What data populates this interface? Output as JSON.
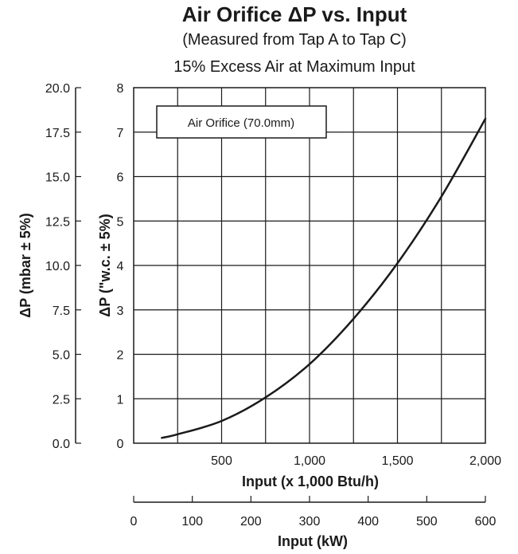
{
  "chart_data": {
    "type": "line",
    "title": "Air Orifice ΔP vs. Input",
    "subtitle_1": "(Measured from Tap A to Tap C)",
    "subtitle_2": "15% Excess Air at Maximum Input",
    "legend": {
      "label": "Air Orifice (70.0mm)",
      "placement": "top-left"
    },
    "grid": true,
    "x_axis": {
      "label": "Input (x 1,000 Btu/h)",
      "min": 0,
      "max": 2000,
      "ticks": [
        500,
        1000,
        1500,
        2000
      ],
      "tick_labels": [
        "500",
        "1,000",
        "1,500",
        "2,000"
      ],
      "grid_step": 250
    },
    "x_axis_secondary": {
      "label": "Input (kW)",
      "min": 0,
      "max": 600,
      "ticks": [
        0,
        100,
        200,
        300,
        400,
        500,
        600
      ],
      "tick_labels": [
        "0",
        "100",
        "200",
        "300",
        "400",
        "500",
        "600"
      ]
    },
    "y_axis": {
      "label": "ΔP (\"w.c. ± 5%)",
      "min": 0,
      "max": 8,
      "ticks": [
        0,
        1,
        2,
        3,
        4,
        5,
        6,
        7,
        8
      ],
      "tick_labels": [
        "0",
        "1",
        "2",
        "3",
        "4",
        "5",
        "6",
        "7",
        "8"
      ]
    },
    "y_axis_secondary": {
      "label": "ΔP (mbar ± 5%)",
      "min": 0,
      "max": 20,
      "ticks": [
        0,
        2.5,
        5,
        7.5,
        10,
        12.5,
        15,
        17.5,
        20
      ],
      "tick_labels": [
        "0.0",
        "2.5",
        "5.0",
        "7.5",
        "10.0",
        "12.5",
        "15.0",
        "17.5",
        "20.0"
      ]
    },
    "series": [
      {
        "name": "Air Orifice (70.0mm)",
        "color": "#1a1a1a",
        "x": [
          160,
          250,
          500,
          750,
          1000,
          1250,
          1500,
          1750,
          2000
        ],
        "y": [
          0.12,
          0.2,
          0.5,
          1.03,
          1.78,
          2.8,
          4.05,
          5.55,
          7.3
        ]
      }
    ]
  }
}
